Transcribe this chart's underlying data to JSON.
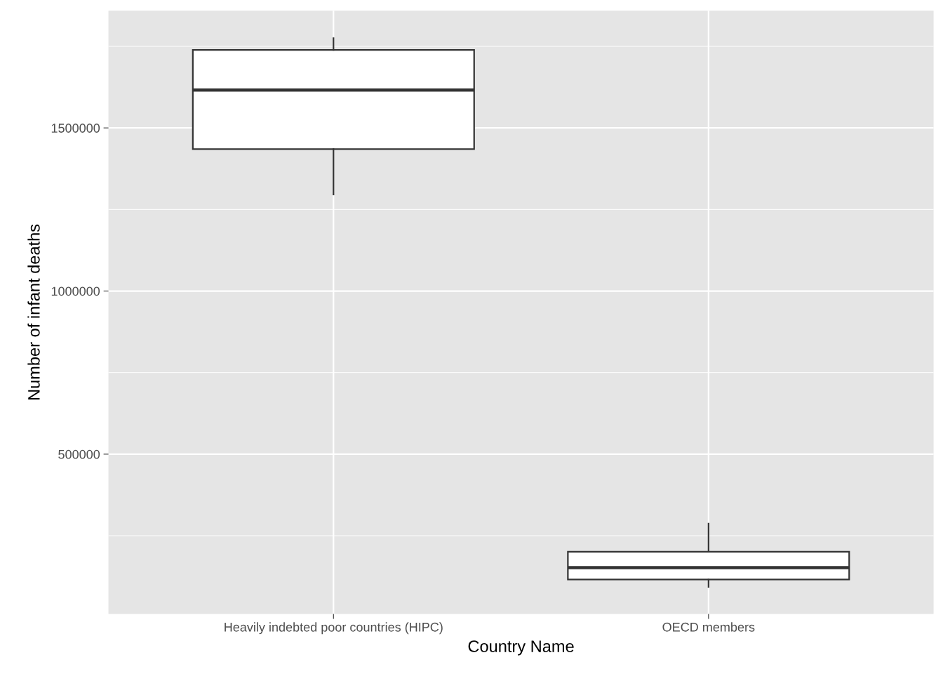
{
  "chart_data": {
    "type": "box",
    "xlabel": "Country Name",
    "ylabel": "Number of infant deaths",
    "categories": [
      "Heavily indebted poor countries (HIPC)",
      "OECD members"
    ],
    "boxes": [
      {
        "low": 1296000,
        "q1": 1435000,
        "median": 1616000,
        "q3": 1739000,
        "high": 1775000
      },
      {
        "low": 93000,
        "q1": 116000,
        "median": 152000,
        "q3": 201000,
        "high": 287000
      }
    ],
    "ylim": [
      10000,
      1859000
    ],
    "yticks": [
      500000,
      1000000,
      1500000
    ],
    "grid": true
  }
}
